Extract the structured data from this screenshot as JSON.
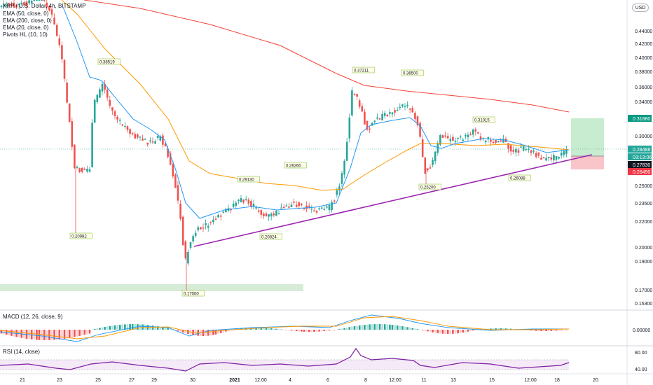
{
  "header": {
    "symbol_line": "XRP / U.S. Dollar, 4h, BITSTAMP",
    "indicators": [
      "EMA (50, close, 0)",
      "EMA (200, close, 0)",
      "EMA (20, close, 0)",
      "Pivots HL (10, 10)"
    ],
    "currency_badge": "USD"
  },
  "price_axis": {
    "ticks": [
      "0.44000",
      "0.42000",
      "0.40000",
      "0.38000",
      "0.36000",
      "0.34000",
      "0.30000",
      "0.25000",
      "0.23500",
      "0.22000",
      "0.20000",
      "0.19000",
      "0.17000",
      "0.16300"
    ],
    "labels": {
      "target": {
        "text": "0.31880",
        "color": "#089981"
      },
      "current": {
        "text": "0.28488",
        "color": "#26a69a"
      },
      "countdown": {
        "text": "03:13:06",
        "color": "#26a69a"
      },
      "entry": {
        "text": "0.27830",
        "color": "#131722"
      },
      "stop": {
        "text": "0.26490",
        "color": "#f23645"
      }
    }
  },
  "pivots": [
    {
      "id": "p1",
      "text": "0.20982"
    },
    {
      "id": "p2",
      "text": "0.38519"
    },
    {
      "id": "p3",
      "text": "0.17000"
    },
    {
      "id": "p4",
      "text": "0.29130"
    },
    {
      "id": "p5",
      "text": "0.20824"
    },
    {
      "id": "p6",
      "text": "0.26260"
    },
    {
      "id": "p7",
      "text": "0.37211"
    },
    {
      "id": "p8",
      "text": "0.36500"
    },
    {
      "id": "p9",
      "text": "0.25200"
    },
    {
      "id": "p10",
      "text": "0.31015"
    },
    {
      "id": "p11",
      "text": "0.26088"
    }
  ],
  "macd": {
    "label": "MACD (12, 26, close, 9)",
    "axis_tick": "0.00000"
  },
  "rsi": {
    "label": "RSI (14, close)",
    "axis_ticks": [
      "80.00",
      "40.00"
    ]
  },
  "time_axis": [
    "21",
    "23",
    "25",
    "27",
    "29",
    "30",
    "2021",
    "12:00",
    "4",
    "6",
    "8",
    "12:00",
    "11",
    "13",
    "15",
    "12:00",
    "18",
    "20"
  ],
  "colors": {
    "ema50": "#ff9800",
    "ema200": "#f44336",
    "ema20": "#2196f3",
    "bull": "#26a69a",
    "bear": "#ef5350",
    "trendline": "#9c27b0",
    "rsi": "#7e1fa2"
  }
}
